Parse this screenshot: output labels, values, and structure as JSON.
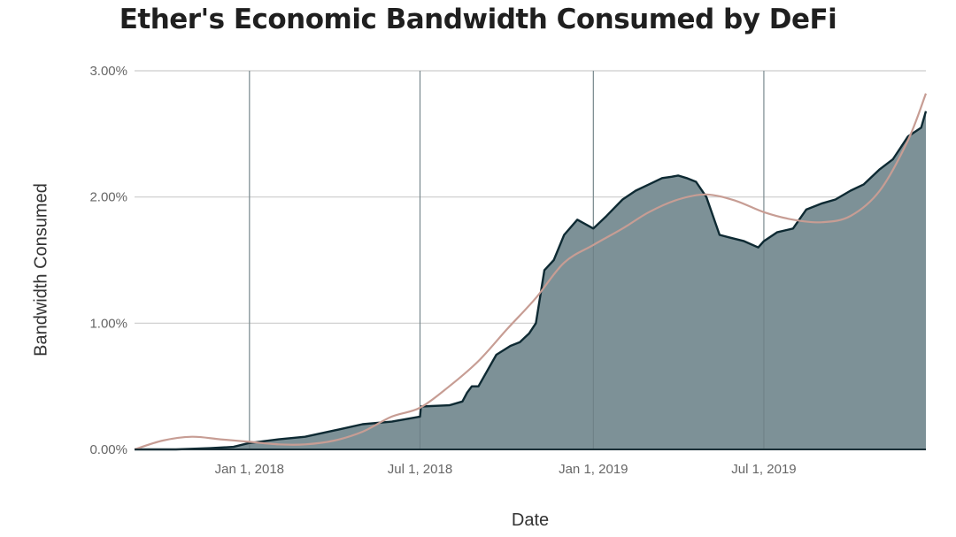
{
  "chart_data": {
    "type": "area",
    "title": "Ether's Economic Bandwidth Consumed by DeFi",
    "xlabel": "Date",
    "ylabel": "Bandwidth Consumed",
    "x_range": [
      "2017-09-01",
      "2019-12-20"
    ],
    "ylim": [
      0,
      3.0
    ],
    "y_ticks": [
      0,
      1,
      2,
      3
    ],
    "y_tick_labels": [
      "0.00%",
      "1.00%",
      "2.00%",
      "3.00%"
    ],
    "x_ticks": [
      "2018-01-01",
      "2018-07-01",
      "2019-01-01",
      "2019-07-01"
    ],
    "x_tick_labels": [
      "Jan 1, 2018",
      "Jul 1, 2018",
      "Jan 1, 2019",
      "Jul 1, 2019"
    ],
    "grid": true,
    "legend": "none",
    "colors": {
      "area_fill": "#7d9197",
      "area_line": "#0e2a33",
      "trend_line": "#c79d94",
      "grid": "#cccccc"
    },
    "series": [
      {
        "kind": "area",
        "x": [
          "2017-09-01",
          "2017-10-15",
          "2017-11-20",
          "2017-12-15",
          "2017-12-31",
          "2018-02-01",
          "2018-03-01",
          "2018-04-01",
          "2018-05-01",
          "2018-06-01",
          "2018-07-01",
          "2018-07-02",
          "2018-08-01",
          "2018-08-15",
          "2018-08-20",
          "2018-08-25",
          "2018-09-01",
          "2018-09-20",
          "2018-10-05",
          "2018-10-15",
          "2018-10-25",
          "2018-11-01",
          "2018-11-10",
          "2018-11-20",
          "2018-12-01",
          "2018-12-15",
          "2019-01-01",
          "2019-01-15",
          "2019-02-01",
          "2019-02-15",
          "2019-03-01",
          "2019-03-15",
          "2019-03-25",
          "2019-04-01",
          "2019-04-10",
          "2019-04-20",
          "2019-05-01",
          "2019-05-15",
          "2019-05-25",
          "2019-06-10",
          "2019-06-25",
          "2019-07-01",
          "2019-07-15",
          "2019-08-01",
          "2019-08-15",
          "2019-09-01",
          "2019-09-15",
          "2019-10-01",
          "2019-10-15",
          "2019-11-01",
          "2019-11-15",
          "2019-12-01",
          "2019-12-15",
          "2019-12-20"
        ],
        "values": [
          0.0,
          0.0,
          0.01,
          0.02,
          0.05,
          0.08,
          0.1,
          0.15,
          0.2,
          0.22,
          0.26,
          0.34,
          0.35,
          0.38,
          0.45,
          0.5,
          0.5,
          0.75,
          0.82,
          0.85,
          0.92,
          1.0,
          1.42,
          1.5,
          1.7,
          1.82,
          1.75,
          1.85,
          1.98,
          2.05,
          2.1,
          2.15,
          2.16,
          2.17,
          2.15,
          2.12,
          2.0,
          1.7,
          1.68,
          1.65,
          1.6,
          1.65,
          1.72,
          1.75,
          1.9,
          1.95,
          1.98,
          2.05,
          2.1,
          2.22,
          2.3,
          2.48,
          2.55,
          2.68
        ]
      },
      {
        "kind": "line",
        "x": [
          "2017-09-01",
          "2017-10-01",
          "2017-11-01",
          "2017-12-01",
          "2018-01-01",
          "2018-02-01",
          "2018-03-01",
          "2018-04-01",
          "2018-05-01",
          "2018-06-01",
          "2018-07-01",
          "2018-08-01",
          "2018-09-01",
          "2018-10-01",
          "2018-11-01",
          "2018-12-01",
          "2019-01-01",
          "2019-02-01",
          "2019-03-01",
          "2019-04-01",
          "2019-05-01",
          "2019-06-01",
          "2019-07-01",
          "2019-08-01",
          "2019-09-01",
          "2019-10-01",
          "2019-11-01",
          "2019-12-01",
          "2019-12-20"
        ],
        "values": [
          0.0,
          0.07,
          0.1,
          0.08,
          0.06,
          0.04,
          0.04,
          0.07,
          0.14,
          0.26,
          0.33,
          0.5,
          0.7,
          0.95,
          1.2,
          1.48,
          1.62,
          1.75,
          1.88,
          1.98,
          2.02,
          1.97,
          1.88,
          1.82,
          1.8,
          1.85,
          2.05,
          2.45,
          2.82
        ]
      }
    ]
  }
}
